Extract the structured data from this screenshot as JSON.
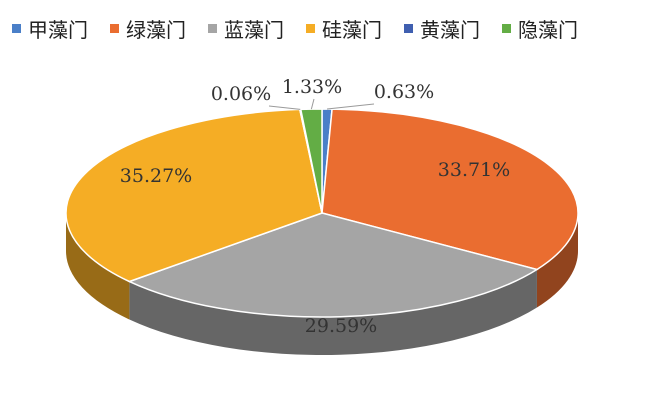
{
  "chart_data": {
    "type": "pie",
    "title": "",
    "legend_position": "top",
    "slices": [
      {
        "label": "甲藻门",
        "value": 0.63,
        "value_label": "0.63%",
        "color": "#4a7fc8"
      },
      {
        "label": "绿藻门",
        "value": 33.71,
        "value_label": "33.71%",
        "color": "#ea6d30"
      },
      {
        "label": "蓝藻门",
        "value": 29.59,
        "value_label": "29.59%",
        "color": "#a5a5a5"
      },
      {
        "label": "硅藻门",
        "value": 35.27,
        "value_label": "35.27%",
        "color": "#f5ad25"
      },
      {
        "label": "黄藻门",
        "value": 0.06,
        "value_label": "0.06%",
        "color": "#3f5fb0"
      },
      {
        "label": "隐藻门",
        "value": 1.33,
        "value_label": "1.33%",
        "color": "#63ad45"
      }
    ]
  }
}
